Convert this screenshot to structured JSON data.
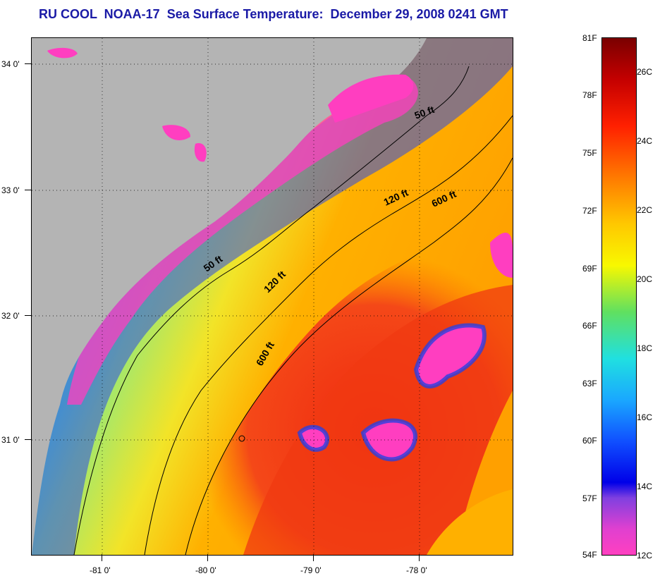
{
  "title": "RU COOL  NOAA-17  Sea Surface Temperature:  December 29, 2008 0241 GMT",
  "map": {
    "lat_labels": [
      "34 0'",
      "33 0'",
      "32 0'",
      "31 0'"
    ],
    "lon_labels": [
      "-81 0'",
      "-80 0'",
      "-79 0'",
      "-78 0'"
    ],
    "contour_labels": [
      {
        "text": "50 ft"
      },
      {
        "text": "120 ft"
      },
      {
        "text": "600 ft"
      },
      {
        "text": "50 ft"
      },
      {
        "text": "120 ft"
      },
      {
        "text": "600 ft"
      }
    ],
    "colors": {
      "land": "#b4b4b4",
      "cold": "#ff3ec0",
      "blue": "#2020e0",
      "cyan": "#20e0ff",
      "green": "#7ce060",
      "yellow": "#f0e020",
      "orange": "#ffa500",
      "red": "#f02010"
    }
  },
  "colorbar": {
    "f_labels": [
      "81F",
      "78F",
      "75F",
      "72F",
      "69F",
      "66F",
      "63F",
      "60F",
      "57F",
      "54F"
    ],
    "c_labels": [
      "26C",
      "24C",
      "22C",
      "20C",
      "18C",
      "16C",
      "14C",
      "12C"
    ]
  }
}
